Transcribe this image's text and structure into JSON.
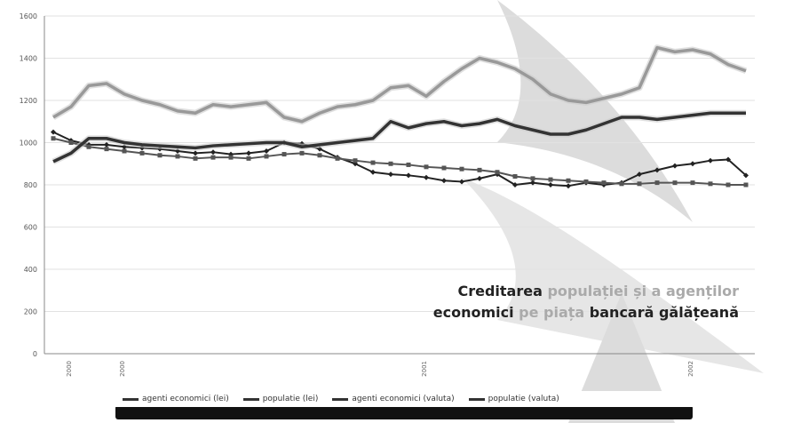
{
  "chart_data": {
    "type": "line",
    "ylim": [
      0,
      1600
    ],
    "yticks": [
      0,
      200,
      400,
      600,
      800,
      1000,
      1200,
      1400,
      1600
    ],
    "xtick_labels": [
      "2000",
      "2000",
      "2001",
      "2002"
    ],
    "legend_position": "bottom",
    "grid": true,
    "series": [
      {
        "name": "agenti economici (lei)",
        "color": "#222222",
        "marker": "diamond",
        "values": [
          1050,
          1010,
          990,
          990,
          980,
          975,
          970,
          960,
          950,
          955,
          945,
          950,
          960,
          1000,
          995,
          970,
          930,
          900,
          860,
          850,
          845,
          835,
          820,
          815,
          830,
          850,
          800,
          810,
          800,
          795,
          810,
          800,
          810,
          850,
          870,
          890,
          900,
          915,
          920,
          845
        ]
      },
      {
        "name": "populatie (lei)",
        "color": "#555555",
        "marker": "square",
        "values": [
          1020,
          1000,
          980,
          970,
          960,
          950,
          940,
          935,
          925,
          930,
          930,
          925,
          935,
          945,
          950,
          940,
          925,
          915,
          905,
          900,
          895,
          885,
          880,
          875,
          870,
          860,
          840,
          830,
          825,
          820,
          815,
          810,
          805,
          805,
          810,
          810,
          810,
          805,
          800,
          800
        ]
      },
      {
        "name": "agenti economici (valuta)",
        "color": "#999999",
        "marker": "none",
        "values": [
          1120,
          1170,
          1270,
          1280,
          1230,
          1200,
          1180,
          1150,
          1140,
          1180,
          1170,
          1180,
          1190,
          1120,
          1100,
          1140,
          1170,
          1180,
          1200,
          1260,
          1270,
          1220,
          1290,
          1350,
          1400,
          1380,
          1350,
          1300,
          1230,
          1200,
          1190,
          1210,
          1230,
          1260,
          1450,
          1430,
          1440,
          1420,
          1370,
          1340
        ]
      },
      {
        "name": "populatie (valuta)",
        "color": "#333333",
        "marker": "none",
        "values": [
          910,
          950,
          1020,
          1020,
          1000,
          990,
          985,
          980,
          975,
          985,
          990,
          995,
          1000,
          1000,
          980,
          990,
          1000,
          1010,
          1020,
          1100,
          1070,
          1090,
          1100,
          1080,
          1090,
          1110,
          1080,
          1060,
          1040,
          1040,
          1060,
          1090,
          1120,
          1120,
          1110,
          1120,
          1130,
          1140,
          1140,
          1140
        ]
      }
    ]
  },
  "caption": {
    "line1_a": "Creditarea ",
    "line1_b": "populației și a agenților",
    "line2_a": "economici ",
    "line2_b": "pe piața ",
    "line2_c": "bancară gălățeană"
  },
  "colors": {
    "watermark": "#dcdcdc",
    "gridline": "#e2e2e2",
    "background": "#ffffff"
  }
}
